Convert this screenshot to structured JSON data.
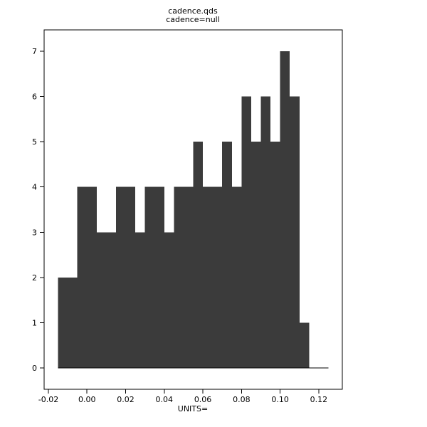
{
  "window": {
    "background": "#ffffff"
  },
  "chart_data": {
    "type": "histogram",
    "title": "cadence.qds",
    "subtitle": "cadence=null",
    "xlabel": "UNITS=",
    "ylabel": "",
    "bar_color": "#3b3b3b",
    "axis_color": "#000000",
    "grid": false,
    "legend": null,
    "bin_start": -0.015,
    "bin_width": 0.005,
    "counts": [
      2,
      2,
      4,
      4,
      3,
      3,
      4,
      4,
      3,
      4,
      4,
      3,
      4,
      4,
      5,
      4,
      4,
      5,
      4,
      6,
      5,
      6,
      5,
      7,
      6,
      1,
      0,
      0
    ],
    "x_ticks": [
      -0.02,
      0.0,
      0.02,
      0.04,
      0.06,
      0.08,
      0.1,
      0.12
    ],
    "x_tick_labels": [
      "-0.02",
      "0.00",
      "0.02",
      "0.04",
      "0.06",
      "0.08",
      "0.10",
      "0.12"
    ],
    "y_ticks": [
      0,
      1,
      2,
      3,
      4,
      5,
      6,
      7
    ],
    "y_tick_labels": [
      "0",
      "1",
      "2",
      "3",
      "4",
      "5",
      "6",
      "7"
    ],
    "xlim": [
      -0.0222,
      0.1322
    ],
    "ylim": [
      -0.47,
      7.47
    ]
  }
}
